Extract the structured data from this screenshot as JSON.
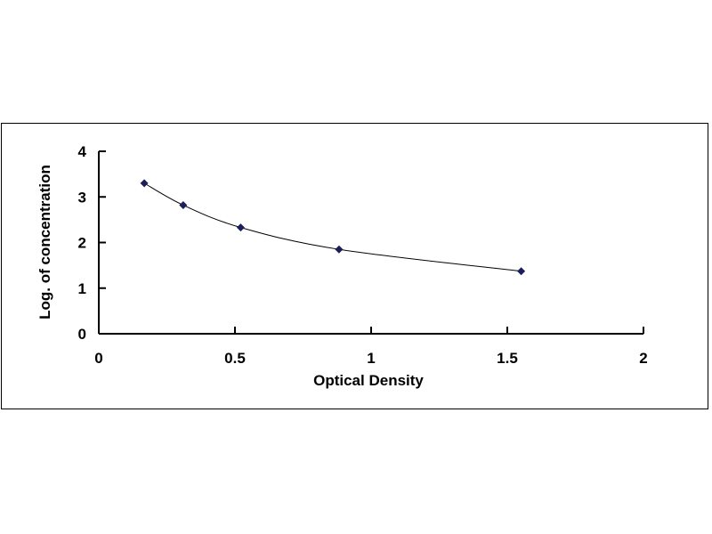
{
  "chart_data": {
    "type": "scatter",
    "title": "",
    "xlabel": "Optical Density",
    "ylabel": "Log. of concentration",
    "xlim": [
      0,
      2
    ],
    "ylim": [
      0,
      4
    ],
    "xticks": [
      "0",
      "0.5",
      "1",
      "1.5",
      "2"
    ],
    "yticks": [
      "0",
      "1",
      "2",
      "3",
      "4"
    ],
    "grid": false,
    "legend": "none",
    "trendline": "smooth curve",
    "marker": "diamond",
    "marker_color": "#1a1f5a",
    "series": [
      {
        "x": [
          0.167,
          0.31,
          0.521,
          0.882,
          1.551
        ],
        "y": [
          3.3,
          2.82,
          2.33,
          1.85,
          1.37
        ]
      }
    ]
  }
}
